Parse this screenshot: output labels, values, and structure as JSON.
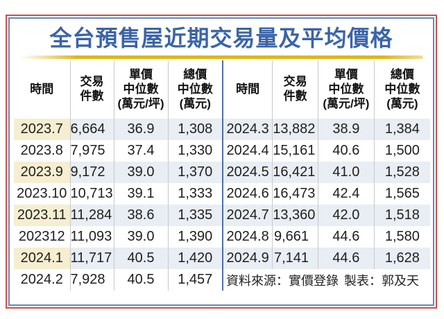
{
  "title": "全台預售屋近期交易量及平均價格",
  "columns": [
    "時間",
    "交易\n件數",
    "單價\n中位數\n(萬元/坪)",
    "總價\n中位數\n(萬元)"
  ],
  "left_table": {
    "rows": [
      [
        "2023.7",
        "6,664",
        "36.9",
        "1,308"
      ],
      [
        "2023.8",
        "7,975",
        "37.4",
        "1,330"
      ],
      [
        "2023.9",
        "9,172",
        "39.0",
        "1,370"
      ],
      [
        "2023.10",
        "10,713",
        "39.1",
        "1,333"
      ],
      [
        "2023.11",
        "11,284",
        "38.6",
        "1,335"
      ],
      [
        "202312",
        "11,093",
        "39.0",
        "1,390"
      ],
      [
        "2024.1",
        "11,717",
        "40.5",
        "1,420"
      ],
      [
        "2024.2",
        "7,928",
        "40.5",
        "1,457"
      ]
    ]
  },
  "right_table": {
    "rows": [
      [
        "2024.3",
        "13,882",
        "38.9",
        "1,384"
      ],
      [
        "2024.4",
        "15,161",
        "40.6",
        "1,500"
      ],
      [
        "2024.5",
        "16,421",
        "41.0",
        "1,528"
      ],
      [
        "2024.6",
        "16,473",
        "42.4",
        "1,565"
      ],
      [
        "2024.7",
        "13,360",
        "42.0",
        "1,518"
      ],
      [
        "2024.8",
        "9,661",
        "44.6",
        "1,580"
      ],
      [
        "2024.9",
        "7,141",
        "44.6",
        "1,628"
      ]
    ]
  },
  "footer": {
    "source": "資料來源：實價登錄",
    "credit": "製表：郭及天"
  },
  "colors": {
    "title_blue": "#3a64a8",
    "outer_border_red": "#c8524c",
    "inner_border_blue": "#6c86b6",
    "divider_blue": "#4a6fae",
    "gold_bar": "#ddb71e",
    "stripe_beige": "#f6eed0",
    "stripe_blue_grey": "#e9edf4"
  },
  "chart_data": {
    "type": "table",
    "title": "全台預售屋近期交易量及平均價格",
    "columns": [
      "時間",
      "交易件數",
      "單價中位數(萬元/坪)",
      "總價中位數(萬元)"
    ],
    "rows": [
      [
        "2023.7",
        6664,
        36.9,
        1308
      ],
      [
        "2023.8",
        7975,
        37.4,
        1330
      ],
      [
        "2023.9",
        9172,
        39.0,
        1370
      ],
      [
        "2023.10",
        10713,
        39.1,
        1333
      ],
      [
        "2023.11",
        11284,
        38.6,
        1335
      ],
      [
        "202312",
        11093,
        39.0,
        1390
      ],
      [
        "2024.1",
        11717,
        40.5,
        1420
      ],
      [
        "2024.2",
        7928,
        40.5,
        1457
      ],
      [
        "2024.3",
        13882,
        38.9,
        1384
      ],
      [
        "2024.4",
        15161,
        40.6,
        1500
      ],
      [
        "2024.5",
        16421,
        41.0,
        1528
      ],
      [
        "2024.6",
        16473,
        42.4,
        1565
      ],
      [
        "2024.7",
        13360,
        42.0,
        1518
      ],
      [
        "2024.8",
        9661,
        44.6,
        1580
      ],
      [
        "2024.9",
        7141,
        44.6,
        1628
      ]
    ],
    "source": "資料來源：實價登錄",
    "credit": "製表：郭及天"
  }
}
